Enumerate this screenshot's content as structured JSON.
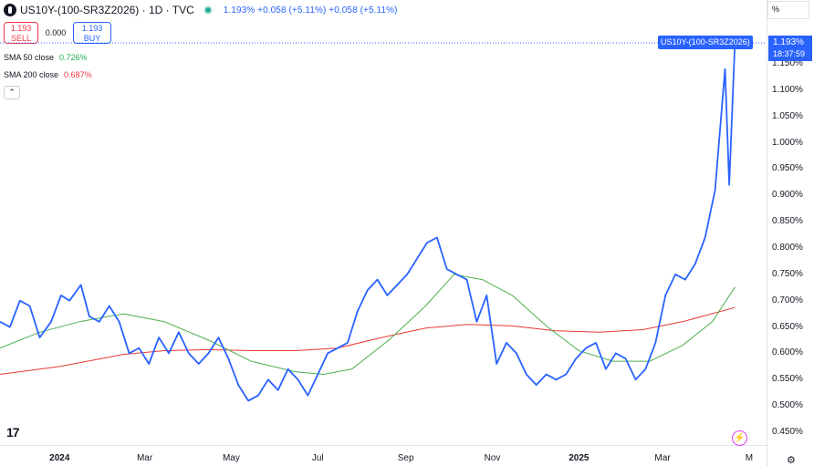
{
  "header": {
    "symbol": "US10Y-(100-SR3Z2026) · 1D · TVC",
    "quote": "1.193%  +0.058 (+5.11%)  +0.058 (+5.11%)",
    "unit": "%"
  },
  "trade": {
    "sell_price": "1.193",
    "sell_label": "SELL",
    "spread": "0.000",
    "buy_price": "1.193",
    "buy_label": "BUY"
  },
  "indicators": [
    {
      "label": "SMA 50 close",
      "value": "0.726%",
      "color": "#22ab4e"
    },
    {
      "label": "SMA 200 close",
      "value": "0.687%",
      "color": "#f23645"
    }
  ],
  "collapse_icon": "chevron-up-icon",
  "last": {
    "series_label": "US10Y-(100-SR3Z2026)",
    "price": "1.193%",
    "countdown": "18:37:59"
  },
  "colors": {
    "series": "#2962ff",
    "sma50": "#4caf50",
    "sma200": "#e53935",
    "tag": "#2962ff"
  },
  "chart_data": {
    "type": "line",
    "ylim": [
      0.43,
      1.27
    ],
    "y_ticks": [
      "1.150%",
      "1.100%",
      "1.050%",
      "1.000%",
      "0.950%",
      "0.900%",
      "0.850%",
      "0.800%",
      "0.750%",
      "0.700%",
      "0.650%",
      "0.600%",
      "0.550%",
      "0.500%",
      "0.450%"
    ],
    "x_ticks": [
      {
        "label": "2024",
        "date": "2024-01-01",
        "bold": true
      },
      {
        "label": "Mar",
        "date": "2024-03-01",
        "bold": false
      },
      {
        "label": "May",
        "date": "2024-05-01",
        "bold": false
      },
      {
        "label": "Jul",
        "date": "2024-07-01",
        "bold": false
      },
      {
        "label": "Sep",
        "date": "2024-09-01",
        "bold": false
      },
      {
        "label": "Nov",
        "date": "2024-11-01",
        "bold": false
      },
      {
        "label": "2025",
        "date": "2025-01-01",
        "bold": true
      },
      {
        "label": "Mar",
        "date": "2025-03-01",
        "bold": false
      },
      {
        "label": "M",
        "date": "2025-05-01",
        "bold": false
      }
    ],
    "series": [
      {
        "name": "US10Y-(100-SR3Z2026)",
        "points": [
          [
            "2023-11-20",
            0.66
          ],
          [
            "2023-11-27",
            0.65
          ],
          [
            "2023-12-04",
            0.7
          ],
          [
            "2023-12-11",
            0.69
          ],
          [
            "2023-12-18",
            0.63
          ],
          [
            "2023-12-26",
            0.66
          ],
          [
            "2024-01-02",
            0.71
          ],
          [
            "2024-01-08",
            0.7
          ],
          [
            "2024-01-16",
            0.73
          ],
          [
            "2024-01-22",
            0.67
          ],
          [
            "2024-01-29",
            0.66
          ],
          [
            "2024-02-05",
            0.69
          ],
          [
            "2024-02-12",
            0.66
          ],
          [
            "2024-02-19",
            0.6
          ],
          [
            "2024-02-26",
            0.61
          ],
          [
            "2024-03-04",
            0.58
          ],
          [
            "2024-03-11",
            0.63
          ],
          [
            "2024-03-18",
            0.6
          ],
          [
            "2024-03-25",
            0.64
          ],
          [
            "2024-04-01",
            0.6
          ],
          [
            "2024-04-08",
            0.58
          ],
          [
            "2024-04-15",
            0.6
          ],
          [
            "2024-04-22",
            0.63
          ],
          [
            "2024-04-29",
            0.59
          ],
          [
            "2024-05-06",
            0.54
          ],
          [
            "2024-05-13",
            0.51
          ],
          [
            "2024-05-20",
            0.52
          ],
          [
            "2024-05-27",
            0.55
          ],
          [
            "2024-06-03",
            0.53
          ],
          [
            "2024-06-10",
            0.57
          ],
          [
            "2024-06-17",
            0.55
          ],
          [
            "2024-06-24",
            0.52
          ],
          [
            "2024-07-01",
            0.56
          ],
          [
            "2024-07-08",
            0.6
          ],
          [
            "2024-07-15",
            0.61
          ],
          [
            "2024-07-22",
            0.62
          ],
          [
            "2024-07-29",
            0.68
          ],
          [
            "2024-08-05",
            0.72
          ],
          [
            "2024-08-12",
            0.74
          ],
          [
            "2024-08-19",
            0.71
          ],
          [
            "2024-08-26",
            0.73
          ],
          [
            "2024-09-02",
            0.75
          ],
          [
            "2024-09-09",
            0.78
          ],
          [
            "2024-09-16",
            0.81
          ],
          [
            "2024-09-23",
            0.82
          ],
          [
            "2024-09-30",
            0.76
          ],
          [
            "2024-10-07",
            0.75
          ],
          [
            "2024-10-14",
            0.74
          ],
          [
            "2024-10-21",
            0.66
          ],
          [
            "2024-10-28",
            0.71
          ],
          [
            "2024-11-04",
            0.58
          ],
          [
            "2024-11-11",
            0.62
          ],
          [
            "2024-11-18",
            0.6
          ],
          [
            "2024-11-25",
            0.56
          ],
          [
            "2024-12-02",
            0.54
          ],
          [
            "2024-12-09",
            0.56
          ],
          [
            "2024-12-16",
            0.55
          ],
          [
            "2024-12-23",
            0.56
          ],
          [
            "2024-12-30",
            0.59
          ],
          [
            "2025-01-06",
            0.61
          ],
          [
            "2025-01-13",
            0.62
          ],
          [
            "2025-01-20",
            0.57
          ],
          [
            "2025-01-27",
            0.6
          ],
          [
            "2025-02-03",
            0.59
          ],
          [
            "2025-02-10",
            0.55
          ],
          [
            "2025-02-17",
            0.57
          ],
          [
            "2025-02-24",
            0.62
          ],
          [
            "2025-03-03",
            0.71
          ],
          [
            "2025-03-10",
            0.75
          ],
          [
            "2025-03-17",
            0.74
          ],
          [
            "2025-03-24",
            0.77
          ],
          [
            "2025-03-31",
            0.82
          ],
          [
            "2025-04-07",
            0.91
          ],
          [
            "2025-04-14",
            1.14
          ],
          [
            "2025-04-17",
            0.92
          ],
          [
            "2025-04-21",
            1.193
          ]
        ]
      },
      {
        "name": "SMA 50 close",
        "points": [
          [
            "2023-11-20",
            0.61
          ],
          [
            "2023-12-18",
            0.64
          ],
          [
            "2024-01-15",
            0.66
          ],
          [
            "2024-02-15",
            0.675
          ],
          [
            "2024-03-15",
            0.66
          ],
          [
            "2024-04-15",
            0.625
          ],
          [
            "2024-05-15",
            0.585
          ],
          [
            "2024-06-15",
            0.565
          ],
          [
            "2024-07-05",
            0.56
          ],
          [
            "2024-07-25",
            0.57
          ],
          [
            "2024-08-20",
            0.625
          ],
          [
            "2024-09-15",
            0.69
          ],
          [
            "2024-10-05",
            0.75
          ],
          [
            "2024-10-25",
            0.74
          ],
          [
            "2024-11-15",
            0.71
          ],
          [
            "2024-12-10",
            0.65
          ],
          [
            "2025-01-01",
            0.605
          ],
          [
            "2025-01-25",
            0.585
          ],
          [
            "2025-02-20",
            0.585
          ],
          [
            "2025-03-15",
            0.615
          ],
          [
            "2025-04-05",
            0.66
          ],
          [
            "2025-04-21",
            0.726
          ]
        ]
      },
      {
        "name": "SMA 200 close",
        "points": [
          [
            "2023-11-20",
            0.56
          ],
          [
            "2024-01-01",
            0.575
          ],
          [
            "2024-02-15",
            0.598
          ],
          [
            "2024-03-15",
            0.605
          ],
          [
            "2024-04-15",
            0.607
          ],
          [
            "2024-05-15",
            0.605
          ],
          [
            "2024-06-15",
            0.605
          ],
          [
            "2024-07-15",
            0.61
          ],
          [
            "2024-08-15",
            0.63
          ],
          [
            "2024-09-15",
            0.648
          ],
          [
            "2024-10-15",
            0.655
          ],
          [
            "2024-11-15",
            0.652
          ],
          [
            "2024-12-15",
            0.643
          ],
          [
            "2025-01-15",
            0.64
          ],
          [
            "2025-02-15",
            0.645
          ],
          [
            "2025-03-15",
            0.66
          ],
          [
            "2025-04-21",
            0.687
          ]
        ]
      }
    ]
  }
}
